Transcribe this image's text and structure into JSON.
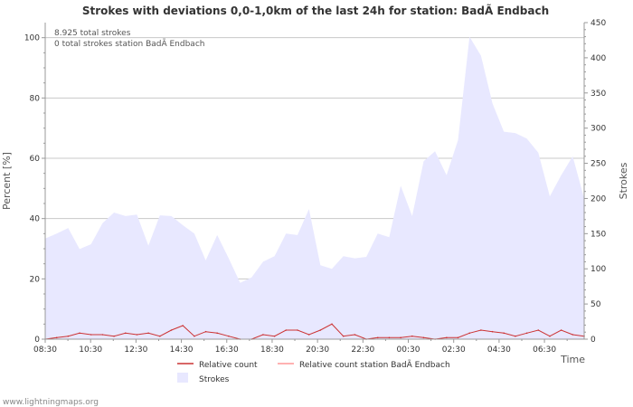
{
  "chart_data": {
    "type": "area",
    "title": "Strokes with deviations 0,0-1,0km of the last 24h for station: BadÃ Endbach",
    "info_lines": [
      "8.925 total strokes",
      "0 total strokes station BadÃ Endbach"
    ],
    "ylabel_left": "Percent   [%]",
    "ylabel_right": "Strokes",
    "xlabel": "Time",
    "ylim_left": [
      0,
      105
    ],
    "ylim_right": [
      0,
      450
    ],
    "yticks_left": [
      0,
      20,
      40,
      60,
      80,
      100
    ],
    "yticks_right": [
      0,
      50,
      100,
      150,
      200,
      250,
      300,
      350,
      400,
      450
    ],
    "x_tick_labels": [
      "08:30",
      "10:30",
      "12:30",
      "14:30",
      "16:30",
      "18:30",
      "20:30",
      "22:30",
      "00:30",
      "02:30",
      "04:30",
      "06:30"
    ],
    "x_range_hours": [
      0,
      23.75
    ],
    "strokes": {
      "name": "Strokes",
      "color": "#e8e8ff",
      "values": [
        143,
        150,
        158,
        128,
        135,
        165,
        180,
        175,
        177,
        133,
        176,
        175,
        162,
        150,
        112,
        148,
        115,
        80,
        88,
        110,
        118,
        150,
        148,
        185,
        105,
        100,
        118,
        115,
        117,
        150,
        145,
        218,
        175,
        253,
        267,
        233,
        283,
        430,
        403,
        335,
        295,
        293,
        285,
        265,
        203,
        233,
        260,
        200
      ]
    },
    "series": [
      {
        "name": "Relative count",
        "color": "#cc3333",
        "values": [
          0,
          0.5,
          1,
          2,
          1.5,
          1.5,
          1,
          2,
          1.5,
          2,
          1,
          3,
          4.5,
          1,
          2.5,
          2,
          1,
          0,
          0,
          1.5,
          1,
          3,
          3,
          1.5,
          3,
          5,
          1,
          1.5,
          0,
          0.5,
          0.5,
          0.5,
          1,
          0.5,
          0,
          0.5,
          0.5,
          2,
          3,
          2.5,
          2,
          1,
          2,
          3,
          1,
          3,
          1.5,
          1
        ]
      },
      {
        "name": "Relative count station BadÃ Endbach",
        "color": "#ff9999",
        "values": [
          0,
          0,
          0,
          0,
          0,
          0,
          0,
          0,
          0,
          0,
          0,
          0,
          0,
          0,
          0,
          0,
          0,
          0,
          0,
          0,
          0,
          0,
          0,
          0,
          0,
          0,
          0,
          0,
          0,
          0,
          0,
          0,
          0,
          0,
          0,
          0,
          0,
          0,
          0,
          0,
          0,
          0,
          0,
          0,
          0,
          0,
          0,
          0
        ]
      }
    ],
    "legend": [
      {
        "label": "Relative count",
        "type": "line",
        "color": "#cc3333"
      },
      {
        "label": "Relative count station BadÃ Endbach",
        "type": "line",
        "color": "#ff9999"
      },
      {
        "label": "Strokes",
        "type": "area",
        "color": "#e8e8ff"
      }
    ]
  },
  "footer": {
    "credit": "www.lightningmaps.org"
  }
}
